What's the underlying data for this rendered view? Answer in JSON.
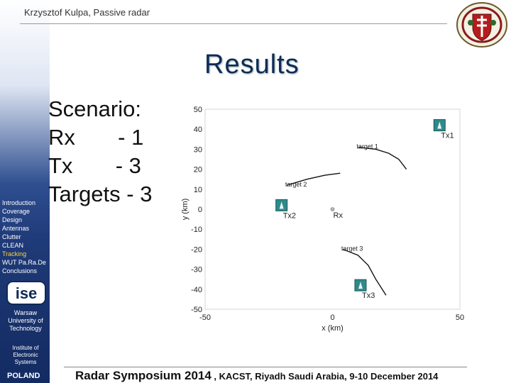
{
  "header": {
    "author": "Krzysztof Kulpa, Passive radar"
  },
  "slide": {
    "title": "Results",
    "scenario": [
      "Scenario:",
      "Rx       - 1",
      "Tx       - 3",
      "Targets - 3"
    ]
  },
  "sidebar": {
    "nav": [
      "Introduction",
      "Coverage",
      "Design",
      "Antennas",
      "Clutter",
      "CLEAN",
      "Tracking",
      "WUT Pa.Ra.De",
      "Conclusions"
    ],
    "active_index": 6,
    "logo_text": "ise",
    "university": [
      "Warsaw",
      "University of",
      "Technology"
    ],
    "institute": [
      "Institute of",
      "Electronic",
      "Systems"
    ],
    "country": "POLAND"
  },
  "footer": {
    "event": "Radar Symposium 2014",
    "details": " , KACST, Riyadh  Saudi Arabia,  9-10 December 2014"
  },
  "colors": {
    "accent": "#0d2b55",
    "active_nav": "#ffd23c",
    "sidebar_dark": "#132b62"
  },
  "chart_data": {
    "type": "scatter",
    "xlabel": "x (km)",
    "ylabel": "y (km)",
    "xlim": [
      -50,
      50
    ],
    "ylim": [
      -50,
      50
    ],
    "xticks": [
      -50,
      0,
      50
    ],
    "yticks": [
      50,
      40,
      30,
      20,
      10,
      0,
      -10,
      -20,
      -30,
      -40,
      -50
    ],
    "receivers": [
      {
        "name": "Rx",
        "x": 0,
        "y": 0
      }
    ],
    "transmitters": [
      {
        "name": "Tx1",
        "x": 42,
        "y": 42
      },
      {
        "name": "Tx2",
        "x": -20,
        "y": 2
      },
      {
        "name": "Tx3",
        "x": 11,
        "y": -38
      }
    ],
    "targets": [
      {
        "name": "target 1",
        "points": [
          [
            10,
            31
          ],
          [
            17,
            30
          ],
          [
            22,
            28
          ],
          [
            26,
            25
          ],
          [
            29,
            20
          ]
        ]
      },
      {
        "name": "target 2",
        "points": [
          [
            -18,
            12
          ],
          [
            -10,
            15
          ],
          [
            -3,
            17
          ],
          [
            3,
            18
          ]
        ]
      },
      {
        "name": "target 3",
        "points": [
          [
            4,
            -20
          ],
          [
            10,
            -23
          ],
          [
            14,
            -28
          ],
          [
            17,
            -35
          ],
          [
            21,
            -43
          ]
        ]
      }
    ]
  }
}
